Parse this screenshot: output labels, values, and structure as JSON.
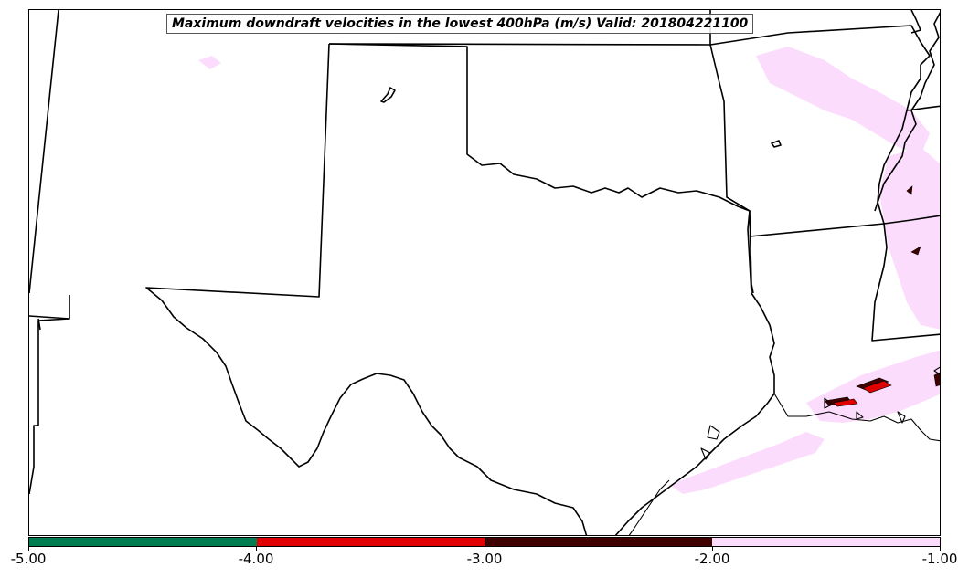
{
  "title": "Maximum downdraft velocities in the lowest 400hPa (m/s) Valid: 201804221100",
  "colorbar": {
    "ticks": [
      "-5.00",
      "-4.00",
      "-3.00",
      "-2.00",
      "-1.00"
    ],
    "colors": [
      "#007d50",
      "#e00000",
      "#400000",
      "#fcdcfc"
    ]
  },
  "colors": {
    "boundary": "#000000",
    "light_fill": "#fcdcfc",
    "dark_fill": "#400000",
    "red_fill": "#e00000"
  }
}
